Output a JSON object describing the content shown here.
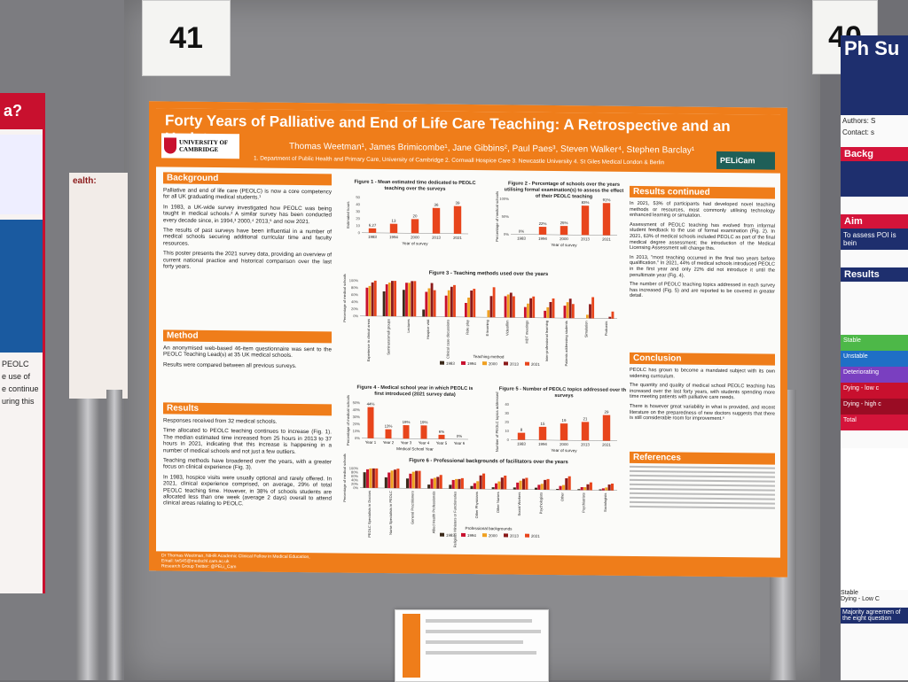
{
  "scene": {
    "left_number": "41",
    "right_number": "40"
  },
  "poster": {
    "title": "Forty Years of Palliative and End of Life Care Teaching: A Retrospective and an Update",
    "authors": "Thomas Weetman¹, James Brimicombe¹, Jane Gibbins², Paul Paes³, Steven Walker⁴, Stephen Barclay¹",
    "affiliations": "1. Department of Public Health and Primary Care, University of Cambridge 2. Cornwall Hospice Care 3. Newcastle University 4. St Giles Medical London & Berlin",
    "logo_text_1": "UNIVERSITY OF",
    "logo_text_2": "CAMBRIDGE",
    "pelicam": "PELiCam",
    "sections": {
      "background": {
        "heading": "Background",
        "p1": "Palliative and end of life care (PEOLC) is now a core competency for all UK graduating medical students.¹",
        "p2": "In 1983, a UK-wide survey investigated how PEOLC was being taught in medical schools.² A similar survey has been conducted every decade since, in 1994,³ 2000,⁴ 2013,⁵ and now 2021.",
        "p3": "The results of past surveys have been influential in a number of medical schools securing additional curricular time and faculty resources.",
        "p4": "This poster presents the 2021 survey data, providing an overview of current national practice and historical comparison over the last forty years."
      },
      "method": {
        "heading": "Method",
        "p1": "An anonymised web-based 46-item questionnaire was sent to the PEOLC Teaching Lead(s) at 35 UK medical schools.",
        "p2": "Results were compared between all previous surveys."
      },
      "results": {
        "heading": "Results",
        "p1": "Responses received from 32 medical schools.",
        "p2": "Time allocated to PEOLC teaching continues to increase (Fig. 1). The median estimated time increased from 25 hours in 2013 to 37 hours in 2021, indicating that this increase is happening in a number of medical schools and not just a few outliers.",
        "p3": "Teaching methods have broadened over the years, with a greater focus on clinical experience (Fig. 3).",
        "p4": "In 1983, hospice visits were usually optional and rarely offered. In 2021, clinical experience comprised, on average, 29% of total PEOLC teaching time. However, in 38% of schools students are allocated less than one week (average 2 days) overall to attend clinical areas relating to PEOLC."
      },
      "results_continued": {
        "heading": "Results continued",
        "p1": "In 2021, 53% of participants had developed novel teaching methods or resources, most commonly utilising technology enhanced learning or simulation.",
        "p2": "Assessment of PEOLC teaching has evolved from informal student feedback to the use of formal examination (Fig. 2). In 2021, 63% of medical schools included PEOLC as part of the final medical degree assessment; the introduction of the Medical Licensing Assessment will change this.",
        "p3": "In 2013, \"most teaching occurred in the final two years before qualification.\" In 2021, 44% of medical schools introduced PEOLC in the first year and only 22% did not introduce it until the penultimate year (Fig. 4).",
        "p4": "The number of PEOLC teaching topics addressed in each survey has increased (Fig. 5) and are reported to be covered in greater detail."
      },
      "conclusion": {
        "heading": "Conclusion",
        "p1": "PEOLC has grown to become a mandated subject with its own widening curriculum.",
        "p2": "The quantity and quality of medical school PEOLC teaching has increased over the last forty years, with students spending more time meeting patients with palliative care needs.",
        "p3": "There is however great variability in what is provided, and recent literature on the preparedness of new doctors suggests that there is still considerable room for improvement.⁶"
      },
      "references": {
        "heading": "References"
      }
    },
    "footer": {
      "line1": "Dr Thomas Weetman, NIHR Academic Clinical Fellow in Medical Education,",
      "line2": "Email: tw545@medschl.cam.ac.uk",
      "line3": "Research Group Twitter: @PELi_Cam"
    },
    "colors": {
      "orange": "#ef7d1a",
      "bar": "#e8451c",
      "s1983": "#3b2a1a",
      "s1994": "#c8102e",
      "s2000": "#f0a020",
      "s2013": "#8b1a1a",
      "s2021": "#e8451c"
    }
  },
  "chart_data": [
    {
      "type": "bar",
      "title": "Figure 1 - Mean estimated time dedicated to PEOLC teaching over the surveys",
      "categories": [
        "1983",
        "1994",
        "2000",
        "2013",
        "2021"
      ],
      "values": [
        6.27,
        13,
        20,
        36,
        39
      ],
      "labels": [
        "6.27",
        "13",
        "20",
        "36",
        "39"
      ],
      "xlabel": "Year of survey",
      "ylabel": "Estimated hours",
      "ylim": [
        0,
        50
      ],
      "yticks": [
        "0",
        "10",
        "20",
        "30",
        "40",
        "50"
      ]
    },
    {
      "type": "bar",
      "title": "Figure 2 - Percentage of schools over the years utilising formal examination(s) to assess the effect of their PEOLC teaching",
      "categories": [
        "1983",
        "1994",
        "2000",
        "2013",
        "2021"
      ],
      "values": [
        0,
        22,
        25,
        83,
        91
      ],
      "labels": [
        "0%",
        "22%",
        "25%",
        "83%",
        "91%"
      ],
      "xlabel": "Year of survey",
      "ylabel": "Percentage of medical schools",
      "ylim": [
        0,
        100
      ],
      "yticks": [
        "0%",
        "50%",
        "100%"
      ]
    },
    {
      "type": "bar",
      "title": "Figure 3 - Teaching methods used over the years",
      "categories": [
        "Experience in clinical areas",
        "Seminars/small groups",
        "Lectures",
        "Hospice visit",
        "Clinical case discussions",
        "Role play",
        "E-learning",
        "Video/film",
        "MDT meetings",
        "Inter-professional learning",
        "Patients addressing students",
        "Simulation",
        "Podcasts"
      ],
      "series": [
        {
          "name": "1983",
          "values": [
            0,
            70,
            75,
            20,
            0,
            0,
            0,
            0,
            0,
            0,
            0,
            0,
            0
          ]
        },
        {
          "name": "1994",
          "values": [
            80,
            90,
            95,
            70,
            60,
            40,
            0,
            60,
            30,
            20,
            35,
            0,
            0
          ]
        },
        {
          "name": "2000",
          "values": [
            85,
            95,
            95,
            80,
            75,
            55,
            20,
            65,
            40,
            30,
            45,
            10,
            0
          ]
        },
        {
          "name": "2013",
          "values": [
            95,
            100,
            100,
            95,
            85,
            75,
            60,
            70,
            55,
            45,
            55,
            40,
            5
          ]
        },
        {
          "name": "2021",
          "values": [
            100,
            100,
            100,
            75,
            90,
            80,
            85,
            60,
            60,
            55,
            40,
            60,
            20
          ]
        }
      ],
      "xlabel": "Teaching method",
      "ylabel": "Percentage of medical schools",
      "ylim": [
        0,
        100
      ],
      "yticks": [
        "0%",
        "20%",
        "40%",
        "60%",
        "80%",
        "100%"
      ]
    },
    {
      "type": "bar",
      "title": "Figure 4 - Medical school year in which PEOLC is first introduced (2021 survey data)",
      "categories": [
        "Year 1",
        "Year 2",
        "Year 3",
        "Year 4",
        "Year 5",
        "Year 6"
      ],
      "values": [
        44,
        13,
        19,
        19,
        6,
        0
      ],
      "labels": [
        "44%",
        "13%",
        "19%",
        "19%",
        "6%",
        "0%"
      ],
      "xlabel": "Medical School Year",
      "ylabel": "Percentage of medical schools",
      "ylim": [
        0,
        50
      ],
      "yticks": [
        "0%",
        "10%",
        "20%",
        "30%",
        "40%",
        "50%"
      ]
    },
    {
      "type": "bar",
      "title": "Figure 5 - Number of PEOLC topics addressed over the surveys",
      "categories": [
        "1983",
        "1994",
        "2000",
        "2013",
        "2021"
      ],
      "values": [
        8,
        15,
        19,
        21,
        29
      ],
      "labels": [
        "8",
        "15",
        "19",
        "21",
        "29"
      ],
      "xlabel": "Year of survey",
      "ylabel": "Number of PEOLC topics addressed",
      "ylim": [
        0,
        40
      ],
      "yticks": [
        "0",
        "10",
        "20",
        "30",
        "40"
      ]
    },
    {
      "type": "bar",
      "title": "Figure 6 - Professional backgrounds of facilitators over the years",
      "categories": [
        "PEOLC Specialists in Doctors",
        "Nurse Specialists in PEOLC",
        "General Practitioners",
        "Allied Health Professionals",
        "Religious Ministers or Functionaries",
        "Other Physicians",
        "Other Nurses",
        "Social Workers",
        "Psychologists",
        "Other",
        "Psychiatrists",
        "Sociologists"
      ],
      "series": [
        {
          "name": "1983",
          "values": [
            80,
            55,
            50,
            20,
            20,
            15,
            10,
            10,
            10,
            5,
            5,
            5
          ]
        },
        {
          "name": "1994",
          "values": [
            95,
            80,
            75,
            50,
            45,
            30,
            30,
            35,
            25,
            20,
            15,
            10
          ]
        },
        {
          "name": "2000",
          "values": [
            100,
            90,
            85,
            55,
            50,
            40,
            40,
            45,
            30,
            25,
            15,
            15
          ]
        },
        {
          "name": "2013",
          "values": [
            100,
            95,
            90,
            60,
            50,
            70,
            60,
            55,
            50,
            60,
            30,
            30
          ]
        },
        {
          "name": "2021",
          "values": [
            100,
            100,
            90,
            70,
            55,
            80,
            70,
            60,
            55,
            70,
            40,
            35
          ]
        }
      ],
      "xlabel": "Professional backgrounds",
      "ylabel": "Percentage of medical schools",
      "ylim": [
        0,
        100
      ],
      "yticks": [
        "0%",
        "20%",
        "40%",
        "60%",
        "80%",
        "100%"
      ]
    }
  ],
  "left_poster": {
    "title_fragment": "a?",
    "line1": "ealth:",
    "text1": "PEOLC",
    "text2": "e use of",
    "text3": "e continue",
    "text4": "uring this"
  },
  "right_poster": {
    "title": "Ph Su",
    "authors": "Authors: S",
    "contact": "Contact: s",
    "background": "Backg",
    "aim": "Aim",
    "aim_text": "To assess POI is bein",
    "results": "Results",
    "rows": [
      "Stable",
      "Unstable",
      "Deteriorating",
      "Dying - low c",
      "Dying - high c",
      "Total"
    ],
    "legend1": "Stable",
    "legend2": "Dying - Low C",
    "majority": "Majority agreemen of the eight question"
  }
}
